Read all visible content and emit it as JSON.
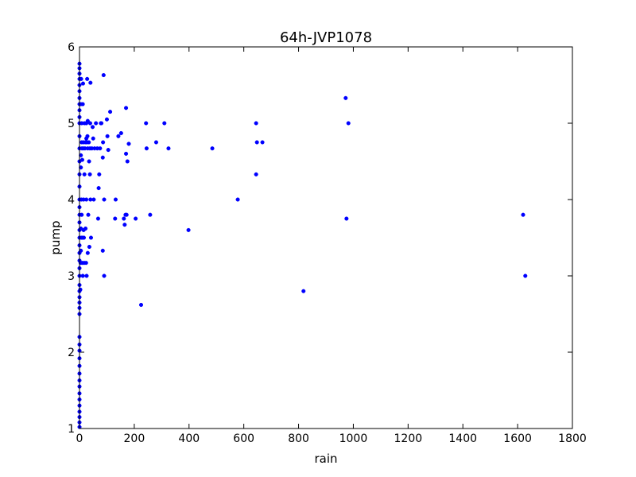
{
  "chart_data": {
    "type": "scatter",
    "title": "64h-JVP1078",
    "xlabel": "rain",
    "ylabel": "pump",
    "xlim": [
      0,
      1800
    ],
    "ylim": [
      1,
      6
    ],
    "x_ticks": [
      "0",
      "200",
      "400",
      "600",
      "800",
      "1000",
      "1200",
      "1400",
      "1600",
      "1800"
    ],
    "y_ticks": [
      "1",
      "2",
      "3",
      "4",
      "5",
      "6"
    ],
    "grid": false,
    "marker_color": "#0000ff",
    "series": [
      {
        "points": [
          [
            0,
            1.02
          ],
          [
            0,
            1.08
          ],
          [
            0,
            1.15
          ],
          [
            0,
            1.22
          ],
          [
            0,
            1.3
          ],
          [
            0,
            1.38
          ],
          [
            0,
            1.46
          ],
          [
            0,
            1.55
          ],
          [
            0,
            1.63
          ],
          [
            0,
            1.72
          ],
          [
            0,
            1.82
          ],
          [
            0,
            1.92
          ],
          [
            0,
            2.02
          ],
          [
            0,
            2.1
          ],
          [
            0,
            2.2
          ],
          [
            0,
            2.5
          ],
          [
            0,
            2.58
          ],
          [
            0,
            2.65
          ],
          [
            0,
            2.72
          ],
          [
            0,
            2.8
          ],
          [
            0,
            2.88
          ],
          [
            0,
            3.0
          ],
          [
            0,
            3.1
          ],
          [
            0,
            3.2
          ],
          [
            0,
            3.3
          ],
          [
            0,
            3.4
          ],
          [
            0,
            3.5
          ],
          [
            0,
            3.6
          ],
          [
            0,
            3.7
          ],
          [
            0,
            3.8
          ],
          [
            0,
            3.9
          ],
          [
            0,
            4.0
          ],
          [
            0,
            4.17
          ],
          [
            0,
            4.33
          ],
          [
            0,
            4.5
          ],
          [
            0,
            4.67
          ],
          [
            0,
            4.83
          ],
          [
            0,
            5.0
          ],
          [
            0,
            5.08
          ],
          [
            0,
            5.17
          ],
          [
            0,
            5.25
          ],
          [
            0,
            5.33
          ],
          [
            0,
            5.42
          ],
          [
            0,
            5.5
          ],
          [
            0,
            5.58
          ],
          [
            0,
            5.65
          ],
          [
            0,
            5.72
          ],
          [
            0,
            5.78
          ],
          [
            3,
            2.82
          ],
          [
            4,
            3.17
          ],
          [
            5,
            3.33
          ],
          [
            5,
            3.62
          ],
          [
            5,
            4.42
          ],
          [
            5,
            4.58
          ],
          [
            5,
            5.25
          ],
          [
            6,
            5.58
          ],
          [
            7,
            3.5
          ],
          [
            7,
            4.0
          ],
          [
            8,
            3.8
          ],
          [
            8,
            4.75
          ],
          [
            8,
            5.0
          ],
          [
            9,
            4.67
          ],
          [
            10,
            3.5
          ],
          [
            10,
            3.17
          ],
          [
            10,
            4.52
          ],
          [
            12,
            5.25
          ],
          [
            12,
            3.0
          ],
          [
            13,
            5.52
          ],
          [
            14,
            4.67
          ],
          [
            15,
            3.6
          ],
          [
            15,
            4.0
          ],
          [
            15,
            4.75
          ],
          [
            16,
            3.5
          ],
          [
            17,
            3.17
          ],
          [
            18,
            5.0
          ],
          [
            18,
            4.33
          ],
          [
            20,
            4.67
          ],
          [
            22,
            4.75
          ],
          [
            22,
            3.62
          ],
          [
            24,
            3.17
          ],
          [
            25,
            4.0
          ],
          [
            25,
            5.0
          ],
          [
            25,
            4.8
          ],
          [
            26,
            3.0
          ],
          [
            27,
            4.75
          ],
          [
            28,
            5.58
          ],
          [
            29,
            4.83
          ],
          [
            30,
            5.03
          ],
          [
            30,
            3.3
          ],
          [
            30,
            4.67
          ],
          [
            32,
            3.8
          ],
          [
            34,
            4.75
          ],
          [
            35,
            4.5
          ],
          [
            36,
            3.38
          ],
          [
            38,
            4.33
          ],
          [
            38,
            4.67
          ],
          [
            39,
            5.0
          ],
          [
            40,
            4.0
          ],
          [
            40,
            5.53
          ],
          [
            42,
            3.5
          ],
          [
            45,
            4.67
          ],
          [
            48,
            4.95
          ],
          [
            50,
            4.8
          ],
          [
            52,
            4.0
          ],
          [
            55,
            4.67
          ],
          [
            60,
            5.0
          ],
          [
            65,
            4.67
          ],
          [
            68,
            3.75
          ],
          [
            70,
            4.15
          ],
          [
            72,
            4.33
          ],
          [
            75,
            4.67
          ],
          [
            78,
            5.0
          ],
          [
            80,
            5.0
          ],
          [
            85,
            4.55
          ],
          [
            85,
            3.33
          ],
          [
            86,
            4.75
          ],
          [
            88,
            5.63
          ],
          [
            90,
            4.0
          ],
          [
            90,
            3.0
          ],
          [
            100,
            5.05
          ],
          [
            102,
            4.83
          ],
          [
            105,
            4.65
          ],
          [
            112,
            5.15
          ],
          [
            130,
            3.75
          ],
          [
            132,
            4.0
          ],
          [
            142,
            4.83
          ],
          [
            152,
            4.87
          ],
          [
            162,
            3.75
          ],
          [
            165,
            3.67
          ],
          [
            168,
            3.8
          ],
          [
            170,
            5.2
          ],
          [
            170,
            4.6
          ],
          [
            172,
            3.8
          ],
          [
            175,
            4.5
          ],
          [
            180,
            4.73
          ],
          [
            205,
            3.75
          ],
          [
            225,
            2.62
          ],
          [
            243,
            5.0
          ],
          [
            245,
            4.67
          ],
          [
            258,
            3.8
          ],
          [
            280,
            4.75
          ],
          [
            310,
            5.0
          ],
          [
            325,
            4.67
          ],
          [
            398,
            3.6
          ],
          [
            485,
            4.67
          ],
          [
            578,
            4.0
          ],
          [
            645,
            5.0
          ],
          [
            645,
            4.33
          ],
          [
            648,
            4.75
          ],
          [
            668,
            4.75
          ],
          [
            818,
            2.8
          ],
          [
            972,
            5.33
          ],
          [
            975,
            3.75
          ],
          [
            982,
            5.0
          ],
          [
            1620,
            3.8
          ],
          [
            1628,
            3.0
          ]
        ]
      }
    ]
  }
}
